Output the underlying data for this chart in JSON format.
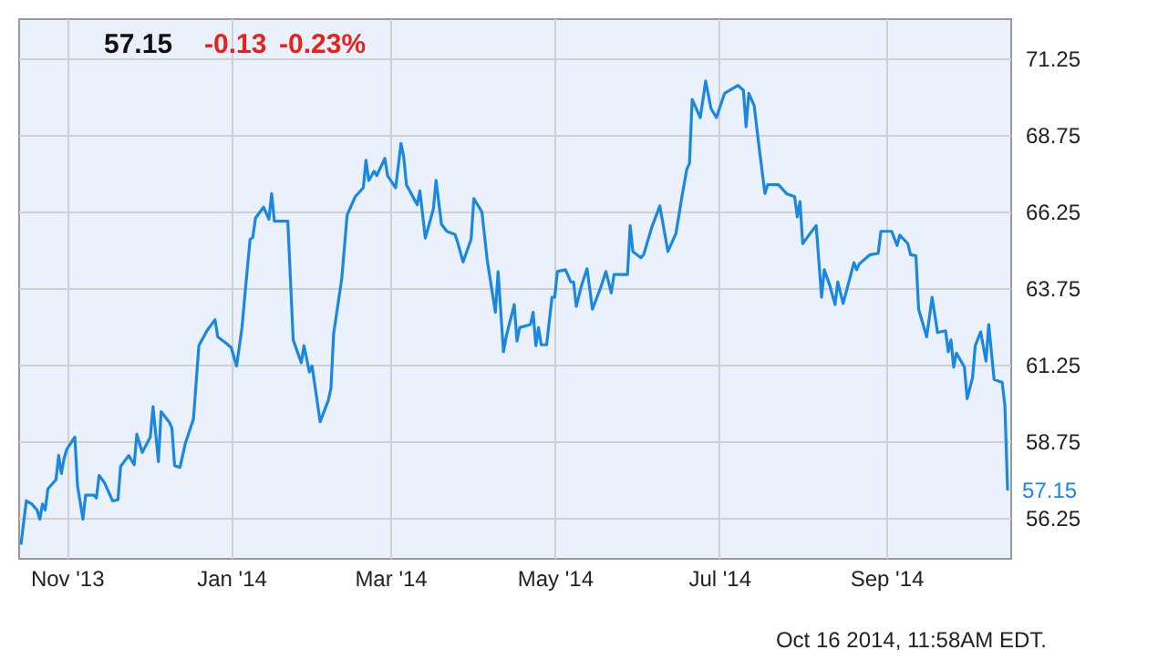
{
  "chart_data": {
    "type": "line",
    "title": "57.15",
    "annotations": [
      "-0.13",
      "-0.23%",
      "Oct 16 2014, 11:58AM EDT.",
      {
        "text": "57.15",
        "x": "2014-10-16",
        "y": 57.15
      }
    ],
    "x": [
      "2013-10-15",
      "2013-10-17",
      "2013-10-19",
      "2013-10-21",
      "2013-10-22",
      "2013-10-23",
      "2013-10-24",
      "2013-10-25",
      "2013-10-28",
      "2013-10-29",
      "2013-10-30",
      "2013-10-31",
      "2013-11-01",
      "2013-11-04",
      "2013-11-05",
      "2013-11-07",
      "2013-11-08",
      "2013-11-11",
      "2013-11-12",
      "2013-11-13",
      "2013-11-15",
      "2013-11-18",
      "2013-11-20",
      "2013-11-21",
      "2013-11-24",
      "2013-11-26",
      "2013-11-27",
      "2013-11-29",
      "2013-12-02",
      "2013-12-03",
      "2013-12-05",
      "2013-12-06",
      "2013-12-09",
      "2013-12-10",
      "2013-12-11",
      "2013-12-13",
      "2013-12-15",
      "2013-12-18",
      "2013-12-19",
      "2013-12-20",
      "2013-12-23",
      "2013-12-26",
      "2013-12-27",
      "2013-12-30",
      "2014-01-01",
      "2014-01-03",
      "2014-01-05",
      "2014-01-06",
      "2014-01-08",
      "2014-01-09",
      "2014-01-10",
      "2014-01-13",
      "2014-01-15",
      "2014-01-16",
      "2014-01-17",
      "2014-01-22",
      "2014-01-24",
      "2014-01-27",
      "2014-01-28",
      "2014-01-30",
      "2014-01-31",
      "2014-02-03",
      "2014-02-06",
      "2014-02-07",
      "2014-02-08",
      "2014-02-11",
      "2014-02-13",
      "2014-02-16",
      "2014-02-19",
      "2014-02-20",
      "2014-02-21",
      "2014-02-23",
      "2014-02-24",
      "2014-02-27",
      "2014-02-28",
      "2014-03-03",
      "2014-03-05",
      "2014-03-06",
      "2014-03-07",
      "2014-03-10",
      "2014-03-11",
      "2014-03-12",
      "2014-03-14",
      "2014-03-17",
      "2014-03-18",
      "2014-03-20",
      "2014-03-22",
      "2014-03-25",
      "2014-03-26",
      "2014-03-28",
      "2014-03-31",
      "2014-04-01",
      "2014-04-04",
      "2014-04-06",
      "2014-04-09",
      "2014-04-10",
      "2014-04-12",
      "2014-04-13",
      "2014-04-16",
      "2014-04-17",
      "2014-04-18",
      "2014-04-22",
      "2014-04-23",
      "2014-04-24",
      "2014-04-25",
      "2014-04-26",
      "2014-04-28",
      "2014-04-30",
      "2014-05-01",
      "2014-05-02",
      "2014-05-05",
      "2014-05-07",
      "2014-05-08",
      "2014-05-09",
      "2014-05-11",
      "2014-05-13",
      "2014-05-15",
      "2014-05-18",
      "2014-05-20",
      "2014-05-22",
      "2014-05-23",
      "2014-05-26",
      "2014-05-28",
      "2014-05-29",
      "2014-05-30",
      "2014-06-02",
      "2014-06-03",
      "2014-06-06",
      "2014-06-09",
      "2014-06-10",
      "2014-06-12",
      "2014-06-15",
      "2014-06-17",
      "2014-06-19",
      "2014-06-20",
      "2014-06-21",
      "2014-06-24",
      "2014-06-26",
      "2014-06-28",
      "2014-06-30",
      "2014-07-03",
      "2014-07-08",
      "2014-07-10",
      "2014-07-11",
      "2014-07-12",
      "2014-07-14",
      "2014-07-16",
      "2014-07-18",
      "2014-07-19",
      "2014-07-23",
      "2014-07-26",
      "2014-07-29",
      "2014-07-30",
      "2014-07-31",
      "2014-08-01",
      "2014-08-03",
      "2014-08-06",
      "2014-08-08",
      "2014-08-09",
      "2014-08-11",
      "2014-08-13",
      "2014-08-14",
      "2014-08-16",
      "2014-08-20",
      "2014-08-21",
      "2014-08-22",
      "2014-08-26",
      "2014-08-29",
      "2014-08-30",
      "2014-09-03",
      "2014-09-05",
      "2014-09-06",
      "2014-09-09",
      "2014-09-10",
      "2014-09-12",
      "2014-09-13",
      "2014-09-16",
      "2014-09-18",
      "2014-09-20",
      "2014-09-23",
      "2014-09-24",
      "2014-09-25",
      "2014-09-26",
      "2014-09-27",
      "2014-09-30",
      "2014-10-01",
      "2014-10-03",
      "2014-10-04",
      "2014-10-06",
      "2014-10-08",
      "2014-10-09",
      "2014-10-11",
      "2014-10-14",
      "2014-10-15",
      "2014-10-16"
    ],
    "series": [
      {
        "color": "#1a88e0",
        "values": [
          55.38,
          56.81,
          56.71,
          56.51,
          56.21,
          56.71,
          56.51,
          57.2,
          57.5,
          58.29,
          57.7,
          58.19,
          58.49,
          58.89,
          57.3,
          56.21,
          57.0,
          57.0,
          56.9,
          57.64,
          57.4,
          56.81,
          56.85,
          57.94,
          58.29,
          57.99,
          58.98,
          58.39,
          58.89,
          59.88,
          58.09,
          59.72,
          59.38,
          59.19,
          57.96,
          57.9,
          58.69,
          59.48,
          60.67,
          61.87,
          62.36,
          62.72,
          62.16,
          61.96,
          61.81,
          61.21,
          62.46,
          63.45,
          65.34,
          65.4,
          66.03,
          66.39,
          65.99,
          66.83,
          65.93,
          65.93,
          62.06,
          61.31,
          61.87,
          61.01,
          61.21,
          59.39,
          60.08,
          60.48,
          62.26,
          64.05,
          66.13,
          66.73,
          67.02,
          67.92,
          67.26,
          67.56,
          67.42,
          67.98,
          67.42,
          67.02,
          68.47,
          68.02,
          67.12,
          66.63,
          66.47,
          66.92,
          65.38,
          66.33,
          67.26,
          65.83,
          65.6,
          65.5,
          65.24,
          64.6,
          65.34,
          66.67,
          66.23,
          64.64,
          62.96,
          64.29,
          61.67,
          62.16,
          63.21,
          62.02,
          62.46,
          62.56,
          62.96,
          61.87,
          62.46,
          61.9,
          61.9,
          63.45,
          63.45,
          64.29,
          64.35,
          63.95,
          63.95,
          63.15,
          63.85,
          64.38,
          63.06,
          63.75,
          64.29,
          63.59,
          64.19,
          64.19,
          64.19,
          65.79,
          64.94,
          64.74,
          64.84,
          65.73,
          66.43,
          65.93,
          64.94,
          65.54,
          66.63,
          67.62,
          67.82,
          69.9,
          69.31,
          70.5,
          69.6,
          69.31,
          70.1,
          70.36,
          70.2,
          69.01,
          70.1,
          69.7,
          68.21,
          66.83,
          67.12,
          67.12,
          66.83,
          66.73,
          66.07,
          66.57,
          65.2,
          65.44,
          65.79,
          63.45,
          64.35,
          63.85,
          63.21,
          63.95,
          63.25,
          64.58,
          64.35,
          64.54,
          64.84,
          64.88,
          65.6,
          65.6,
          65.14,
          65.48,
          65.2,
          64.84,
          64.8,
          63.06,
          62.16,
          63.45,
          62.3,
          62.36,
          61.67,
          62.06,
          61.17,
          61.63,
          61.17,
          60.14,
          60.83,
          61.87,
          62.32,
          61.37,
          62.56,
          60.77,
          60.67,
          59.92,
          57.15
        ]
      }
    ],
    "xlim": [
      "2013-10-14",
      "2014-10-17"
    ],
    "xticks": [
      {
        "value": "2013-11-01",
        "label": "Nov '13"
      },
      {
        "value": "2014-01-01",
        "label": "Jan '14"
      },
      {
        "value": "2014-03-01",
        "label": "Mar '14"
      },
      {
        "value": "2014-05-01",
        "label": "May '14"
      },
      {
        "value": "2014-07-01",
        "label": "Jul '14"
      },
      {
        "value": "2014-09-01",
        "label": "Sep '14"
      }
    ],
    "ylim": [
      54.95,
      72.55
    ],
    "yticks": [
      {
        "value": 56.25,
        "label": "56.25"
      },
      {
        "value": 58.75,
        "label": "58.75"
      },
      {
        "value": 61.25,
        "label": "61.25"
      },
      {
        "value": 63.75,
        "label": "63.75"
      },
      {
        "value": 66.25,
        "label": "66.25"
      },
      {
        "value": 68.75,
        "label": "68.75"
      },
      {
        "value": 71.25,
        "label": "71.25"
      }
    ],
    "grid": true,
    "marker": "none",
    "line_style": "solid"
  }
}
